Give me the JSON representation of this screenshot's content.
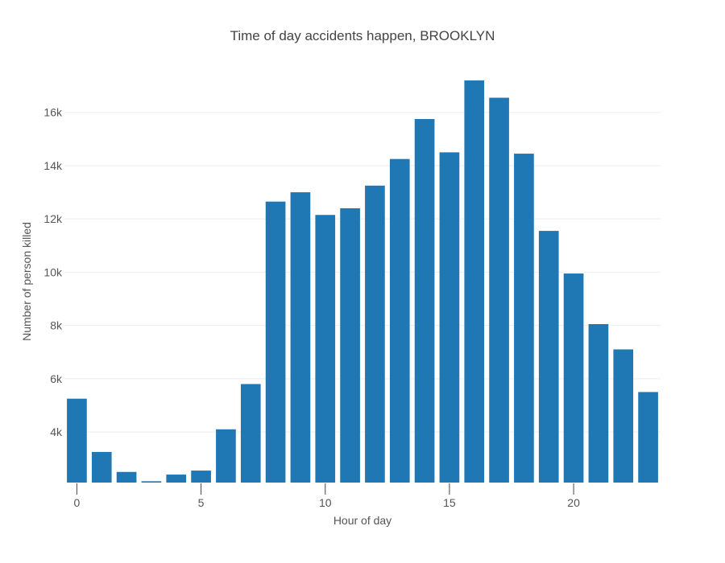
{
  "chart_data": {
    "type": "bar",
    "title": "Time of day accidents happen, BROOKLYN",
    "xlabel": "Hour of day",
    "ylabel": "Number of person killed",
    "x": [
      0,
      1,
      2,
      3,
      4,
      5,
      6,
      7,
      8,
      9,
      10,
      11,
      12,
      13,
      14,
      15,
      16,
      17,
      18,
      19,
      20,
      21,
      22,
      23
    ],
    "values": [
      5250,
      3250,
      2500,
      2150,
      2400,
      2550,
      4100,
      5800,
      12650,
      13000,
      12150,
      12400,
      13250,
      14250,
      15750,
      14500,
      17200,
      16550,
      14450,
      11550,
      9950,
      8050,
      7100,
      5500
    ],
    "xticks": [
      0,
      5,
      10,
      15,
      20
    ],
    "xtick_labels": [
      "0",
      "5",
      "10",
      "15",
      "20"
    ],
    "yticks": [
      4000,
      6000,
      8000,
      10000,
      12000,
      14000,
      16000
    ],
    "ytick_labels": [
      "4k",
      "6k",
      "8k",
      "10k",
      "12k",
      "14k",
      "16k"
    ],
    "xlim": [
      -0.5,
      23.5
    ],
    "ylim": [
      2100,
      17200
    ],
    "grid": true,
    "colors": {
      "bar": "#1f77b4"
    }
  }
}
